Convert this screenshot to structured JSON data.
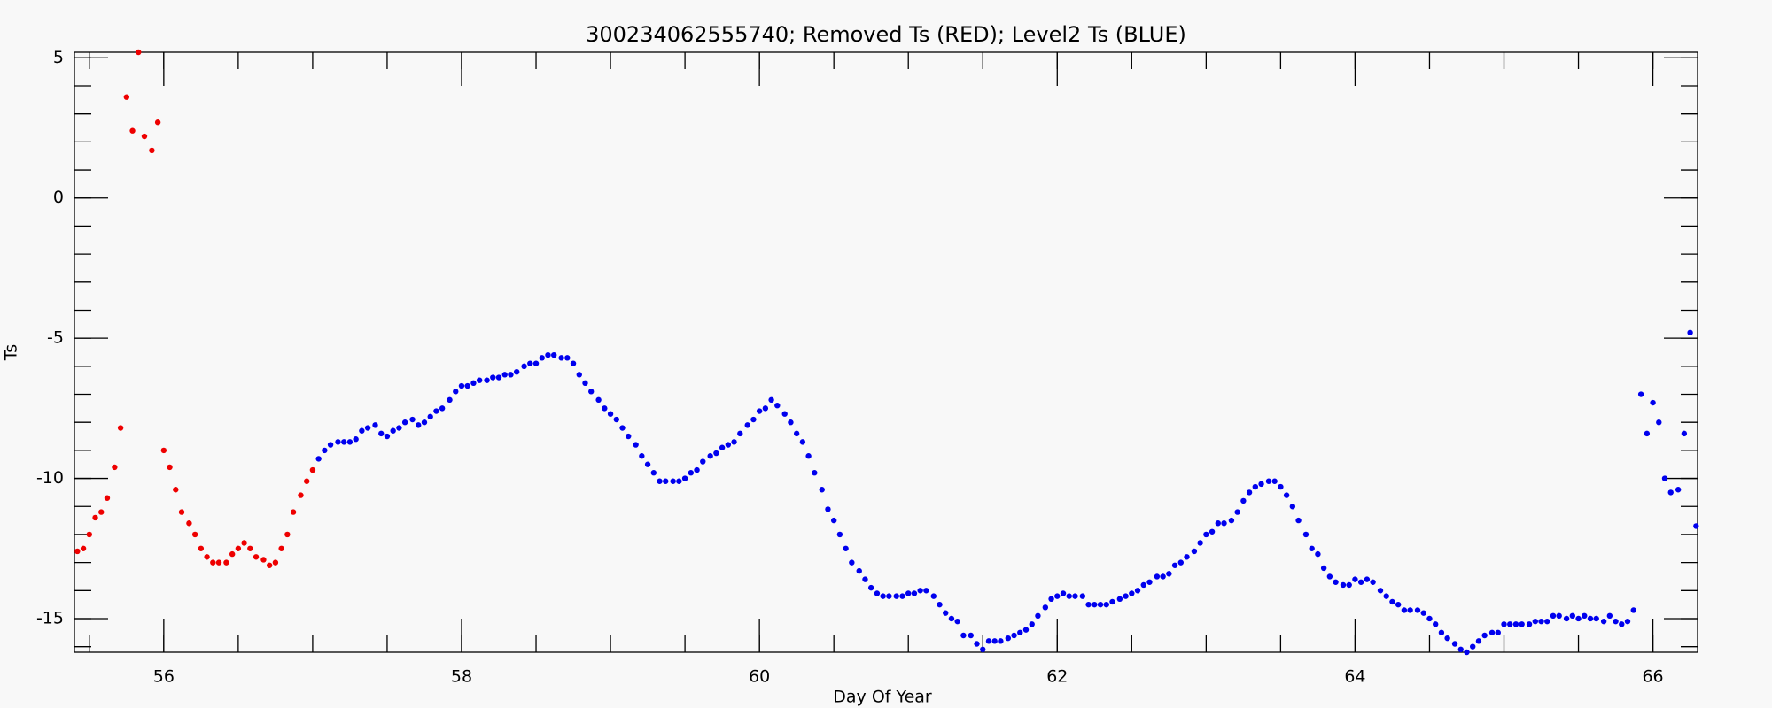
{
  "chart_data": {
    "type": "scatter",
    "title": "300234062555740; Removed Ts (RED); Level2 Ts (BLUE)",
    "x_label": "Day Of Year",
    "y_label": "Ts",
    "xlim": [
      55.4,
      66.3
    ],
    "ylim": [
      -16.2,
      5.2
    ],
    "xticks": [
      56,
      58,
      60,
      62,
      64,
      66
    ],
    "yticks": [
      -15,
      -10,
      -5,
      0,
      5
    ],
    "grid": false,
    "series": [
      {
        "color": "#ee0000",
        "x": [
          55.42,
          55.46,
          55.5,
          55.54,
          55.58,
          55.62,
          55.67,
          55.71,
          55.75,
          55.79,
          55.83,
          55.87,
          55.92,
          55.96,
          56.0,
          56.04,
          56.08,
          56.12,
          56.17,
          56.21,
          56.25,
          56.29,
          56.33,
          56.37,
          56.42,
          56.46,
          56.5,
          56.54,
          56.58,
          56.62,
          56.67,
          56.71,
          56.75,
          56.79,
          56.83,
          56.87,
          56.92,
          56.96,
          57.0
        ],
        "values": [
          -12.6,
          -12.5,
          -12.0,
          -11.4,
          -11.2,
          -10.7,
          -9.6,
          -8.2,
          3.6,
          2.4,
          5.2,
          2.2,
          1.7,
          2.7,
          -9.0,
          -9.6,
          -10.4,
          -11.2,
          -11.6,
          -12.0,
          -12.5,
          -12.8,
          -13.0,
          -13.0,
          -13.0,
          -12.7,
          -12.5,
          -12.3,
          -12.5,
          -12.8,
          -12.9,
          -13.1,
          -13.0,
          -12.5,
          -12.0,
          -11.2,
          -10.6,
          -10.1,
          -9.7
        ]
      },
      {
        "color": "#0000ee",
        "x": [
          57.04,
          57.08,
          57.12,
          57.17,
          57.21,
          57.25,
          57.29,
          57.33,
          57.37,
          57.42,
          57.46,
          57.5,
          57.54,
          57.58,
          57.62,
          57.67,
          57.71,
          57.75,
          57.79,
          57.83,
          57.87,
          57.92,
          57.96,
          58.0,
          58.04,
          58.08,
          58.12,
          58.17,
          58.21,
          58.25,
          58.29,
          58.33,
          58.37,
          58.42,
          58.46,
          58.5,
          58.54,
          58.58,
          58.62,
          58.67,
          58.71,
          58.75,
          58.79,
          58.83,
          58.87,
          58.92,
          58.96,
          59.0,
          59.04,
          59.08,
          59.12,
          59.17,
          59.21,
          59.25,
          59.29,
          59.33,
          59.37,
          59.42,
          59.46,
          59.5,
          59.54,
          59.58,
          59.62,
          59.67,
          59.71,
          59.75,
          59.79,
          59.83,
          59.87,
          59.92,
          59.96,
          60.0,
          60.04,
          60.08,
          60.12,
          60.17,
          60.21,
          60.25,
          60.29,
          60.33,
          60.37,
          60.42,
          60.46,
          60.5,
          60.54,
          60.58,
          60.62,
          60.67,
          60.71,
          60.75,
          60.79,
          60.83,
          60.87,
          60.92,
          60.96,
          61.0,
          61.04,
          61.08,
          61.12,
          61.17,
          61.21,
          61.25,
          61.29,
          61.33,
          61.37,
          61.42,
          61.46,
          61.5,
          61.54,
          61.58,
          61.62,
          61.67,
          61.71,
          61.75,
          61.79,
          61.83,
          61.87,
          61.92,
          61.96,
          62.0,
          62.04,
          62.08,
          62.12,
          62.17,
          62.21,
          62.25,
          62.29,
          62.33,
          62.37,
          62.42,
          62.46,
          62.5,
          62.54,
          62.58,
          62.62,
          62.67,
          62.71,
          62.75,
          62.79,
          62.83,
          62.87,
          62.92,
          62.96,
          63.0,
          63.04,
          63.08,
          63.12,
          63.17,
          63.21,
          63.25,
          63.29,
          63.33,
          63.37,
          63.42,
          63.46,
          63.5,
          63.54,
          63.58,
          63.62,
          63.67,
          63.71,
          63.75,
          63.79,
          63.83,
          63.87,
          63.92,
          63.96,
          64.0,
          64.04,
          64.08,
          64.12,
          64.17,
          64.21,
          64.25,
          64.29,
          64.33,
          64.37,
          64.42,
          64.46,
          64.5,
          64.54,
          64.58,
          64.62,
          64.67,
          64.71,
          64.75,
          64.79,
          64.83,
          64.87,
          64.92,
          64.96,
          65.0,
          65.04,
          65.08,
          65.12,
          65.17,
          65.21,
          65.25,
          65.29,
          65.33,
          65.37,
          65.42,
          65.46,
          65.5,
          65.54,
          65.58,
          65.62,
          65.67,
          65.71,
          65.75,
          65.79,
          65.83,
          65.87,
          65.92,
          65.96,
          66.0,
          66.04,
          66.08,
          66.12,
          66.17,
          66.21,
          66.25,
          66.29
        ],
        "values": [
          -9.3,
          -9.0,
          -8.8,
          -8.7,
          -8.7,
          -8.7,
          -8.6,
          -8.3,
          -8.2,
          -8.1,
          -8.4,
          -8.5,
          -8.3,
          -8.2,
          -8.0,
          -7.9,
          -8.1,
          -8.0,
          -7.8,
          -7.6,
          -7.5,
          -7.2,
          -6.9,
          -6.7,
          -6.7,
          -6.6,
          -6.5,
          -6.5,
          -6.4,
          -6.4,
          -6.3,
          -6.3,
          -6.2,
          -6.0,
          -5.9,
          -5.9,
          -5.7,
          -5.6,
          -5.6,
          -5.7,
          -5.7,
          -5.9,
          -6.3,
          -6.6,
          -6.9,
          -7.2,
          -7.5,
          -7.7,
          -7.9,
          -8.2,
          -8.5,
          -8.8,
          -9.2,
          -9.5,
          -9.8,
          -10.1,
          -10.1,
          -10.1,
          -10.1,
          -10.0,
          -9.8,
          -9.7,
          -9.4,
          -9.2,
          -9.1,
          -8.9,
          -8.8,
          -8.7,
          -8.4,
          -8.1,
          -7.9,
          -7.6,
          -7.5,
          -7.2,
          -7.4,
          -7.7,
          -8.0,
          -8.4,
          -8.7,
          -9.2,
          -9.8,
          -10.4,
          -11.1,
          -11.5,
          -12.0,
          -12.5,
          -13.0,
          -13.3,
          -13.6,
          -13.9,
          -14.1,
          -14.2,
          -14.2,
          -14.2,
          -14.2,
          -14.1,
          -14.1,
          -14.0,
          -14.0,
          -14.2,
          -14.5,
          -14.8,
          -15.0,
          -15.1,
          -15.6,
          -15.6,
          -15.9,
          -16.1,
          -15.8,
          -15.8,
          -15.8,
          -15.7,
          -15.6,
          -15.5,
          -15.4,
          -15.2,
          -14.9,
          -14.6,
          -14.3,
          -14.2,
          -14.1,
          -14.2,
          -14.2,
          -14.2,
          -14.5,
          -14.5,
          -14.5,
          -14.5,
          -14.4,
          -14.3,
          -14.2,
          -14.1,
          -14.0,
          -13.8,
          -13.7,
          -13.5,
          -13.5,
          -13.4,
          -13.1,
          -13.0,
          -12.8,
          -12.6,
          -12.3,
          -12.0,
          -11.9,
          -11.6,
          -11.6,
          -11.5,
          -11.2,
          -10.8,
          -10.5,
          -10.3,
          -10.2,
          -10.1,
          -10.1,
          -10.3,
          -10.6,
          -11.0,
          -11.5,
          -12.0,
          -12.5,
          -12.7,
          -13.2,
          -13.5,
          -13.7,
          -13.8,
          -13.8,
          -13.6,
          -13.7,
          -13.6,
          -13.7,
          -14.0,
          -14.2,
          -14.4,
          -14.5,
          -14.7,
          -14.7,
          -14.7,
          -14.8,
          -15.0,
          -15.2,
          -15.5,
          -15.7,
          -15.9,
          -16.1,
          -16.2,
          -16.0,
          -15.8,
          -15.6,
          -15.5,
          -15.5,
          -15.2,
          -15.2,
          -15.2,
          -15.2,
          -15.2,
          -15.1,
          -15.1,
          -15.1,
          -14.9,
          -14.9,
          -15.0,
          -14.9,
          -15.0,
          -14.9,
          -15.0,
          -15.0,
          -15.1,
          -14.9,
          -15.1,
          -15.2,
          -15.1,
          -14.7,
          -7.0,
          -8.4,
          -7.3,
          -8.0,
          -10.0,
          -10.5,
          -10.4,
          -8.4,
          -4.8,
          -11.7
        ]
      }
    ]
  }
}
